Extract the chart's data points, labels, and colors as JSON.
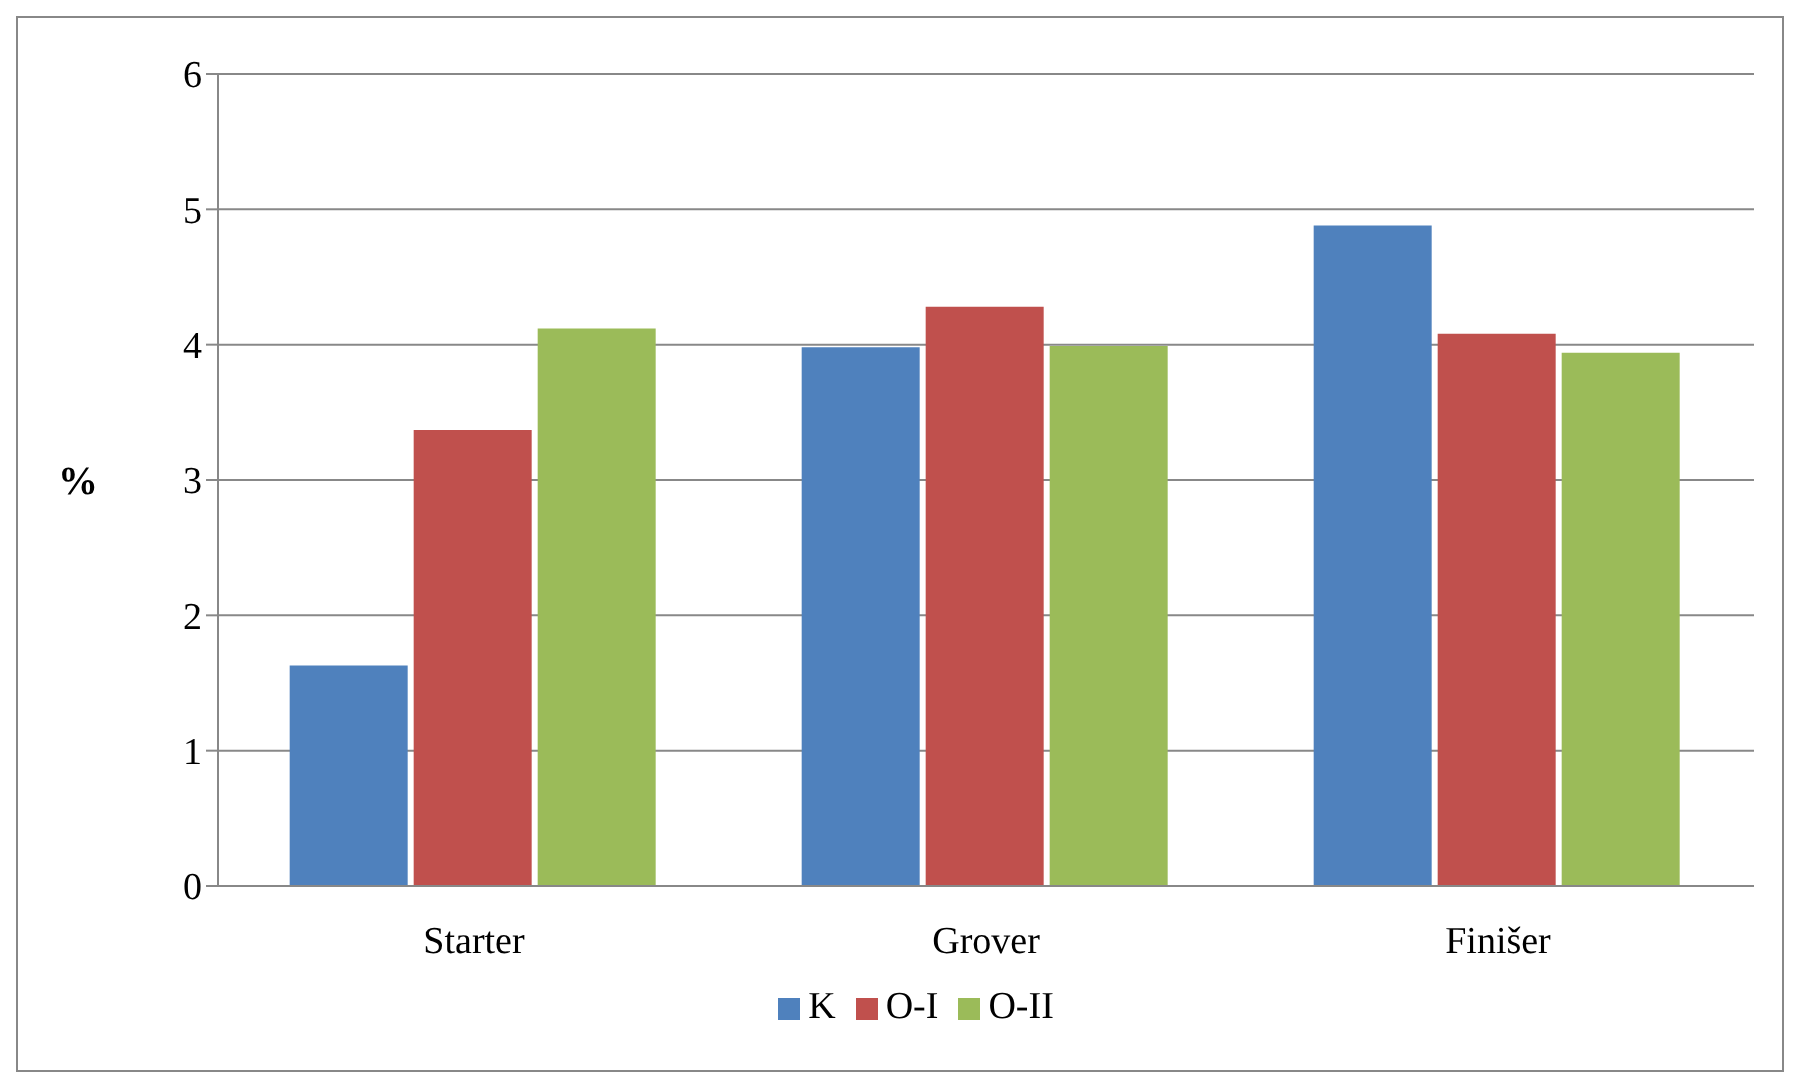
{
  "chart_data": {
    "type": "bar",
    "ylabel": "%",
    "categories": [
      "Starter",
      "Grover",
      "Finišer"
    ],
    "series": [
      {
        "name": "K",
        "color": "#4f81bd",
        "values": [
          1.63,
          3.98,
          4.88
        ]
      },
      {
        "name": "O-I",
        "color": "#c0504d",
        "values": [
          3.37,
          4.28,
          4.08
        ]
      },
      {
        "name": "O-II",
        "color": "#9bbb59",
        "values": [
          4.12,
          3.99,
          3.94
        ]
      }
    ],
    "ylim": [
      0,
      6
    ],
    "yticks": [
      0,
      1,
      2,
      3,
      4,
      5,
      6
    ],
    "grid": "y",
    "legend": "bottom"
  }
}
